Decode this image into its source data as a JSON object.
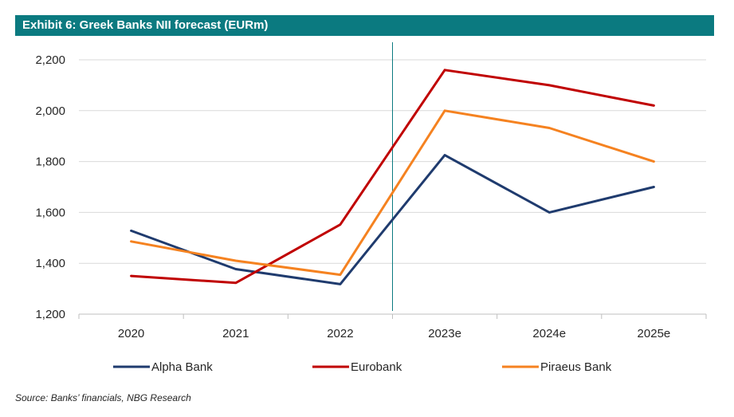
{
  "title": "Exhibit 6: Greek Banks NII forecast (EURm)",
  "source": "Source: Banks’ financials, NBG Research",
  "chart_data": {
    "type": "line",
    "title": "Exhibit 6: Greek Banks NII forecast (EURm)",
    "categories": [
      "2020",
      "2021",
      "2022",
      "2023e",
      "2024e",
      "2025e"
    ],
    "ylim": [
      1200,
      2200
    ],
    "yticks": [
      1200,
      1400,
      1600,
      1800,
      2000,
      2200
    ],
    "ytick_labels": [
      "1,200",
      "1,400",
      "1,600",
      "1,800",
      "2,000",
      "2,200"
    ],
    "grid": true,
    "legend": "bottom",
    "divider_between": [
      "2022",
      "2023e"
    ],
    "series": [
      {
        "name": "Alpha Bank",
        "color": "#1f3b6e",
        "values": [
          1528,
          1377,
          1318,
          1825,
          1600,
          1700
        ]
      },
      {
        "name": "Eurobank",
        "color": "#c00000",
        "values": [
          1350,
          1323,
          1552,
          2160,
          2100,
          2020
        ]
      },
      {
        "name": "Piraeus Bank",
        "color": "#f58220",
        "values": [
          1486,
          1410,
          1355,
          2000,
          1932,
          1800
        ]
      }
    ]
  }
}
